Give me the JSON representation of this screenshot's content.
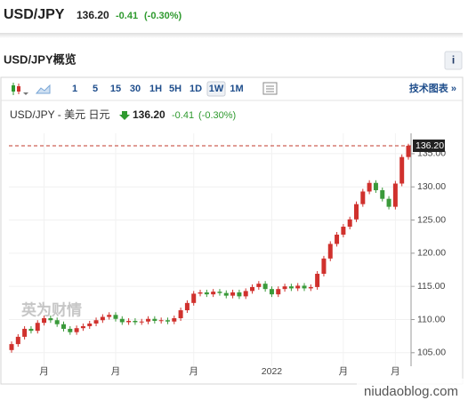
{
  "header": {
    "symbol": "USD/JPY",
    "price": "136.20",
    "change": "-0.41",
    "change_pct": "(-0.30%)",
    "section_title": "USD/JPY概览",
    "info_button": "i"
  },
  "toolbar": {
    "intervals": [
      "1",
      "5",
      "15",
      "30",
      "1H",
      "5H",
      "1D",
      "1W",
      "1M"
    ],
    "selected": "1W",
    "link": "技术图表 »"
  },
  "watermarks": {
    "brand": "英为财情",
    "site": "niudaoblog.com"
  },
  "chart_data": {
    "type": "candlestick",
    "title": "USD/JPY - 美元 日元",
    "categories": [
      null,
      null,
      null,
      null,
      null,
      "月",
      null,
      null,
      null,
      null,
      null,
      null,
      null,
      null,
      null,
      null,
      "月",
      null,
      null,
      null,
      null,
      null,
      null,
      null,
      null,
      null,
      null,
      null,
      "月",
      null,
      null,
      null,
      null,
      null,
      null,
      null,
      null,
      null,
      null,
      null,
      "2022",
      null,
      null,
      null,
      null,
      null,
      null,
      null,
      null,
      null,
      null,
      "月",
      null,
      null,
      null,
      null,
      null,
      null,
      null,
      "月",
      null,
      null
    ],
    "series": {
      "up_color": "#d0312d",
      "down_color": "#3a9a3a",
      "open": [
        105.4,
        106.3,
        107.4,
        108.6,
        108.3,
        109.5,
        110.2,
        109.9,
        109.3,
        108.6,
        108.1,
        108.7,
        109.0,
        109.4,
        109.9,
        110.4,
        110.7,
        110.1,
        109.6,
        109.8,
        109.6,
        109.7,
        110.1,
        109.8,
        109.9,
        109.7,
        110.2,
        111.4,
        112.5,
        113.9,
        114.1,
        113.8,
        114.2,
        114.0,
        113.6,
        114.1,
        113.5,
        114.3,
        114.9,
        115.4,
        114.6,
        113.8,
        114.6,
        115.0,
        114.7,
        115.1,
        114.7,
        114.9,
        116.9,
        119.2,
        121.4,
        122.8,
        124.0,
        125.1,
        127.4,
        129.3,
        130.6,
        129.5,
        128.2,
        127.0,
        130.5,
        134.5
      ],
      "high": [
        106.7,
        107.8,
        109.0,
        109.0,
        109.9,
        110.6,
        110.6,
        110.3,
        109.7,
        109.0,
        109.1,
        109.4,
        109.8,
        110.3,
        110.8,
        111.1,
        111.1,
        110.5,
        110.2,
        110.2,
        110.1,
        110.5,
        110.5,
        110.3,
        110.3,
        110.6,
        111.8,
        112.9,
        114.3,
        114.5,
        114.5,
        114.6,
        114.6,
        114.4,
        114.5,
        114.5,
        114.7,
        115.3,
        115.8,
        115.8,
        115.0,
        115.0,
        115.4,
        115.4,
        115.5,
        115.5,
        115.3,
        117.3,
        119.6,
        121.8,
        123.2,
        124.4,
        125.5,
        127.8,
        129.7,
        131.0,
        131.0,
        129.9,
        128.6,
        130.9,
        134.9,
        136.5
      ],
      "low": [
        105.0,
        105.9,
        107.0,
        107.9,
        107.9,
        109.1,
        109.5,
        108.9,
        108.2,
        107.7,
        107.7,
        108.3,
        108.6,
        109.0,
        109.5,
        110.0,
        109.7,
        109.2,
        109.2,
        109.2,
        109.2,
        109.3,
        109.4,
        109.4,
        109.3,
        109.3,
        109.8,
        111.0,
        112.1,
        113.5,
        113.4,
        113.4,
        113.6,
        113.2,
        113.2,
        113.1,
        113.1,
        113.9,
        114.5,
        114.2,
        113.4,
        113.4,
        114.2,
        114.3,
        114.3,
        114.3,
        114.3,
        114.5,
        116.5,
        118.8,
        121.0,
        122.4,
        123.6,
        124.7,
        127.0,
        128.9,
        129.1,
        127.8,
        126.6,
        126.6,
        130.1,
        134.1
      ],
      "close": [
        106.3,
        107.4,
        108.6,
        108.3,
        109.5,
        110.2,
        109.9,
        109.3,
        108.6,
        108.1,
        108.7,
        109.0,
        109.4,
        109.9,
        110.4,
        110.7,
        110.1,
        109.6,
        109.8,
        109.6,
        109.7,
        110.1,
        109.8,
        109.9,
        109.7,
        110.2,
        111.4,
        112.5,
        113.9,
        114.1,
        113.8,
        114.2,
        114.0,
        113.6,
        114.1,
        113.5,
        114.3,
        114.9,
        115.4,
        114.6,
        113.8,
        114.6,
        115.0,
        114.7,
        115.1,
        114.7,
        114.9,
        116.9,
        119.2,
        121.4,
        122.8,
        124.0,
        125.1,
        127.4,
        129.3,
        130.6,
        129.5,
        128.2,
        127.0,
        130.5,
        134.5,
        136.2
      ]
    },
    "last_price": {
      "value": 136.2,
      "label": "136.20"
    },
    "ylim": [
      103.5,
      137
    ],
    "yticks": [
      {
        "value": 105,
        "label": "105.00"
      },
      {
        "value": 110,
        "label": "110.00"
      },
      {
        "value": 115,
        "label": "115.00"
      },
      {
        "value": 120,
        "label": "120.00"
      },
      {
        "value": 125,
        "label": "125.00"
      },
      {
        "value": 130,
        "label": "130.00"
      },
      {
        "value": 135,
        "label": "135.00"
      }
    ],
    "grid": true
  }
}
